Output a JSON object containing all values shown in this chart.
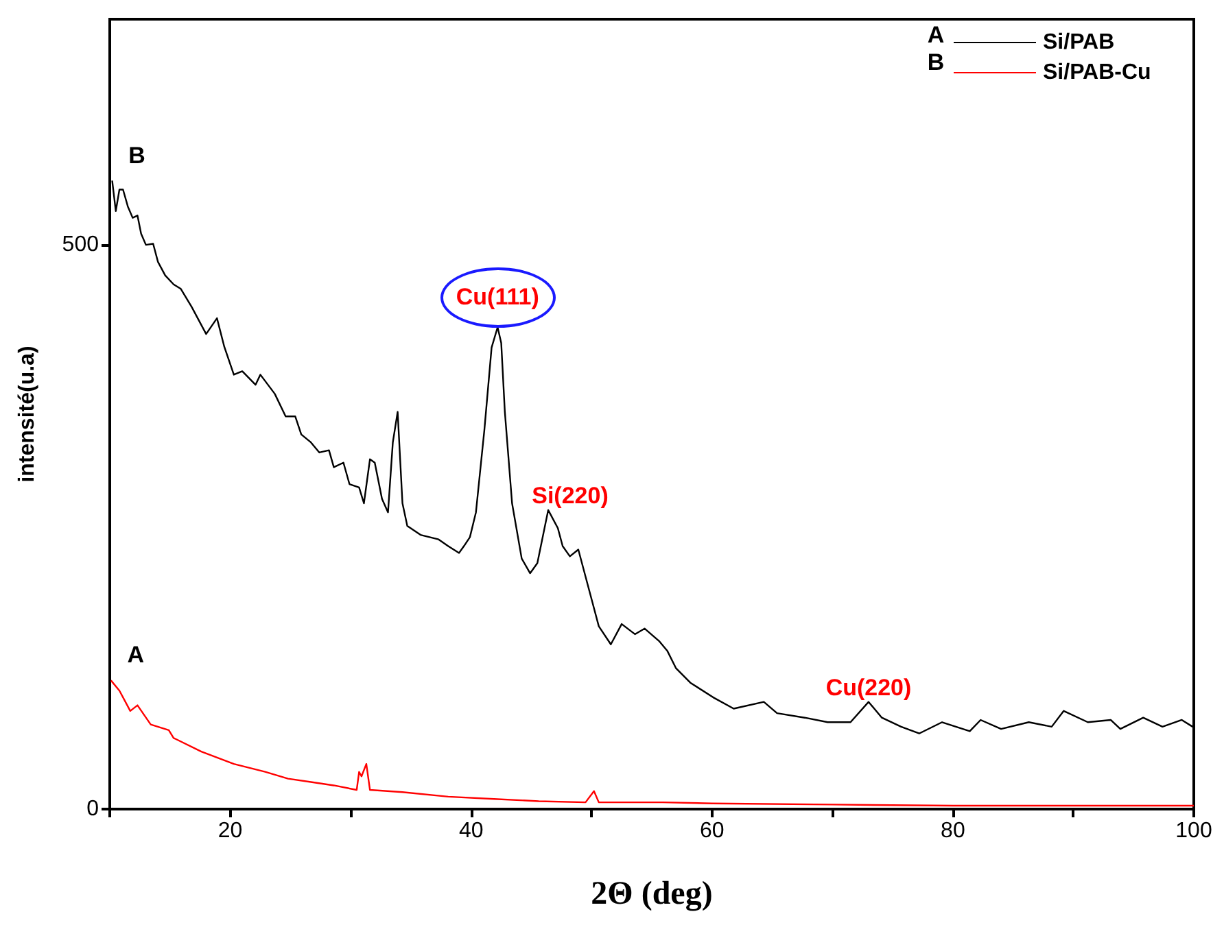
{
  "chart_data": {
    "type": "line",
    "xlabel": "2Θ (deg)",
    "ylabel": "intensité(u.a)",
    "xlim": [
      10,
      100
    ],
    "ylim": [
      0,
      700
    ],
    "xticks": [
      {
        "value": 10,
        "label": null
      },
      20,
      {
        "value": 30,
        "label": null
      },
      40,
      {
        "value": 50,
        "label": null
      },
      60,
      {
        "value": 70,
        "label": null
      },
      80,
      {
        "value": 90,
        "label": null
      },
      100
    ],
    "yticks": [
      0,
      500
    ],
    "grid": false,
    "legend": "top right",
    "marker": "none",
    "line_style": "solid",
    "series": [
      {
        "name": "Si/PAB",
        "color": "#000000",
        "x": [
          10.2,
          10.5,
          10.8,
          11.1,
          11.5,
          11.9,
          12.3,
          12.6,
          13.0,
          13.6,
          14.0,
          14.6,
          15.3,
          15.9,
          16.8,
          18.0,
          18.9,
          19.5,
          20.3,
          21.0,
          22.1,
          22.5,
          23.7,
          24.6,
          25.4,
          25.9,
          26.7,
          27.4,
          28.2,
          28.6,
          29.4,
          29.9,
          30.7,
          31.1,
          31.6,
          32.0,
          32.6,
          33.1,
          33.5,
          33.9,
          34.3,
          34.7,
          35.8,
          37.3,
          38.1,
          39.0,
          39.4,
          39.9,
          40.4,
          41.1,
          41.7,
          42.2,
          42.5,
          42.8,
          43.4,
          44.2,
          44.9,
          45.5,
          46.4,
          47.2,
          47.6,
          48.2,
          48.9,
          49.9,
          50.6,
          51.6,
          52.5,
          53.6,
          54.4,
          55.6,
          56.3,
          57.0,
          58.2,
          60.1,
          61.8,
          64.3,
          65.4,
          67.7,
          69.6,
          71.5,
          73.0,
          74.1,
          75.7,
          77.2,
          79.1,
          81.4,
          82.3,
          84.0,
          86.3,
          88.2,
          89.2,
          91.2,
          93.1,
          93.9,
          95.8,
          97.4,
          99.0,
          99.9
        ],
        "values": [
          557,
          530,
          549,
          549,
          534,
          524,
          526,
          510,
          500,
          501,
          485,
          473,
          465,
          461,
          445,
          421,
          435,
          410,
          385,
          388,
          376,
          385,
          368,
          348,
          348,
          332,
          325,
          316,
          318,
          303,
          307,
          288,
          285,
          271,
          310,
          307,
          275,
          263,
          325,
          352,
          271,
          251,
          243,
          239,
          233,
          227,
          233,
          241,
          263,
          336,
          409,
          427,
          413,
          352,
          271,
          222,
          209,
          218,
          265,
          249,
          233,
          224,
          230,
          190,
          162,
          146,
          164,
          155,
          160,
          149,
          140,
          125,
          112,
          99,
          89,
          95,
          85,
          81,
          77,
          77,
          95,
          81,
          73,
          67,
          77,
          69,
          79,
          71,
          77,
          73,
          87,
          77,
          79,
          71,
          81,
          73,
          79,
          73
        ]
      },
      {
        "name": "Si/PAB-Cu",
        "color": "#ff0000",
        "x": [
          10.1,
          10.8,
          11.7,
          12.3,
          13.4,
          14.9,
          15.3,
          17.6,
          20.3,
          22.9,
          24.8,
          26.7,
          28.6,
          30.5,
          30.7,
          30.9,
          31.3,
          31.6,
          34.3,
          38.1,
          41.9,
          45.6,
          49.5,
          50.2,
          50.6,
          53.3,
          55.9,
          60,
          70,
          80,
          90,
          100
        ],
        "values": [
          114,
          105,
          87,
          92,
          75,
          70,
          63,
          51,
          40,
          33,
          27,
          24,
          21,
          17,
          33,
          29,
          40,
          17,
          15,
          11,
          9,
          7,
          6,
          16,
          6,
          6,
          6,
          5,
          4,
          3,
          3,
          3
        ]
      }
    ],
    "annotations": [
      {
        "text": "B",
        "x": 10.2,
        "y": 557
      },
      {
        "text": "A",
        "x": 10.1,
        "y": 114
      },
      {
        "text": "Cu(111)",
        "x": 42.2,
        "y": 427
      },
      {
        "text": "Si(220)",
        "x": 46.4,
        "y": 265
      },
      {
        "text": "Cu(220)",
        "x": 73.0,
        "y": 95
      },
      "A",
      "B"
    ]
  }
}
